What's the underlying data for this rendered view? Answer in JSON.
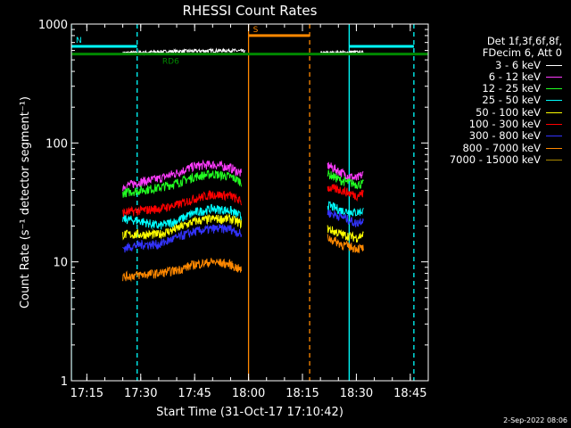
{
  "chart_data": {
    "type": "line",
    "title": "RHESSI Count Rates",
    "xlabel": "Start Time (31-Oct-17 17:10:42)",
    "ylabel": "Count Rate (s⁻¹ detector segment⁻¹)",
    "yscale": "log",
    "ylim": [
      1,
      1000
    ],
    "xlim": [
      "17:10:42",
      "18:50:00"
    ],
    "yticks": [
      {
        "value": 1,
        "label": "1"
      },
      {
        "value": 10,
        "label": "10"
      },
      {
        "value": 100,
        "label": "100"
      },
      {
        "value": 1000,
        "label": "1000"
      }
    ],
    "xticks": [
      "17:15",
      "17:30",
      "17:45",
      "18:00",
      "18:15",
      "18:30",
      "18:45"
    ],
    "legend_header": [
      "Det 1f,3f,6f,8f,",
      "FDecim 6, Att 0"
    ],
    "series": [
      {
        "name": "3 - 6 keV",
        "color": "#ffffff",
        "segments": [
          {
            "x": [
              "17:25",
              "17:40",
              "17:55",
              "17:59"
            ],
            "y": [
              570,
              590,
              600,
              590
            ]
          },
          {
            "x": [
              "18:20",
              "18:30",
              "18:32"
            ],
            "y": [
              570,
              580,
              575
            ]
          }
        ]
      },
      {
        "name": "6 - 12 keV",
        "color": "#ff3cff",
        "segments": [
          {
            "x": [
              "17:25",
              "17:30",
              "17:35",
              "17:40",
              "17:45",
              "17:50",
              "17:55",
              "17:58"
            ],
            "y": [
              43,
              47,
              50,
              56,
              64,
              66,
              62,
              55
            ]
          },
          {
            "x": [
              "18:22",
              "18:26",
              "18:30",
              "18:32"
            ],
            "y": [
              65,
              56,
              50,
              55
            ]
          }
        ]
      },
      {
        "name": "12 - 25 keV",
        "color": "#22ff22",
        "segments": [
          {
            "x": [
              "17:25",
              "17:30",
              "17:35",
              "17:40",
              "17:45",
              "17:50",
              "17:55",
              "17:58"
            ],
            "y": [
              38,
              40,
              42,
              46,
              52,
              55,
              52,
              47
            ]
          },
          {
            "x": [
              "18:22",
              "18:26",
              "18:30",
              "18:32"
            ],
            "y": [
              55,
              48,
              45,
              45
            ]
          }
        ]
      },
      {
        "name": "25 - 50 keV",
        "color": "#00ffff",
        "segments": [
          {
            "x": [
              "17:25",
              "17:30",
              "17:35",
              "17:40",
              "17:45",
              "17:50",
              "17:55",
              "17:58"
            ],
            "y": [
              23,
              22,
              20,
              22,
              26,
              28,
              27,
              24
            ]
          },
          {
            "x": [
              "18:22",
              "18:26",
              "18:30",
              "18:32"
            ],
            "y": [
              30,
              27,
              26,
              27
            ]
          }
        ]
      },
      {
        "name": "50 - 100 keV",
        "color": "#ffff00",
        "segments": [
          {
            "x": [
              "17:25",
              "17:30",
              "17:35",
              "17:40",
              "17:45",
              "17:50",
              "17:55",
              "17:58"
            ],
            "y": [
              17,
              17,
              17,
              19,
              22,
              23,
              23,
              21
            ]
          },
          {
            "x": [
              "18:22",
              "18:26",
              "18:30",
              "18:32"
            ],
            "y": [
              19,
              17,
              16,
              17
            ]
          }
        ]
      },
      {
        "name": "100 - 300 keV",
        "color": "#ff0000",
        "segments": [
          {
            "x": [
              "17:25",
              "17:30",
              "17:35",
              "17:40",
              "17:45",
              "17:50",
              "17:55",
              "17:58"
            ],
            "y": [
              26,
              27,
              28,
              30,
              34,
              37,
              36,
              32
            ]
          },
          {
            "x": [
              "18:22",
              "18:26",
              "18:30",
              "18:32"
            ],
            "y": [
              42,
              40,
              36,
              38
            ]
          }
        ]
      },
      {
        "name": "300 - 800 keV",
        "color": "#3333ff",
        "segments": [
          {
            "x": [
              "17:25",
              "17:30",
              "17:35",
              "17:40",
              "17:45",
              "17:50",
              "17:55",
              "17:58"
            ],
            "y": [
              13,
              14,
              14,
              16,
              18,
              19,
              19,
              17
            ]
          },
          {
            "x": [
              "18:22",
              "18:26",
              "18:30",
              "18:32"
            ],
            "y": [
              26,
              24,
              21,
              23
            ]
          }
        ]
      },
      {
        "name": "800 - 7000 keV",
        "color": "#ff8800",
        "segments": [
          {
            "x": [
              "17:25",
              "17:30",
              "17:35",
              "17:40",
              "17:45",
              "17:50",
              "17:55",
              "17:58"
            ],
            "y": [
              7.5,
              7.8,
              8.0,
              8.5,
              9.5,
              10,
              9.5,
              8.5
            ]
          },
          {
            "x": [
              "18:22",
              "18:26",
              "18:30",
              "18:32"
            ],
            "y": [
              16,
              14,
              13,
              13
            ]
          }
        ]
      },
      {
        "name": "7000 - 15000 keV",
        "color": "#aa8800",
        "segments": []
      }
    ],
    "reference_lines": [
      {
        "label": "RD6",
        "color": "#008800",
        "y": 560
      },
      {
        "label": "N",
        "color": "#00ffff",
        "x_start": "17:10:42",
        "x_end": "17:29",
        "y": 650
      },
      {
        "label": "",
        "color": "#00ffff",
        "x_start": "18:28",
        "x_end": "18:46",
        "y": 650
      },
      {
        "label": "S",
        "color": "#ff8800",
        "x_start": "18:00",
        "x_end": "18:17",
        "y": 800
      }
    ],
    "vertical_lines": [
      {
        "x": "17:10:42",
        "color": "#00ffff",
        "style": "solid"
      },
      {
        "x": "17:29",
        "color": "#00ffff",
        "style": "dashed"
      },
      {
        "x": "18:00",
        "color": "#ff8800",
        "style": "solid"
      },
      {
        "x": "18:17",
        "color": "#ff8800",
        "style": "dashed"
      },
      {
        "x": "18:28",
        "color": "#00ffff",
        "style": "solid"
      },
      {
        "x": "18:46",
        "color": "#00ffff",
        "style": "dashed"
      }
    ],
    "stamp": "2-Sep-2022 08:06"
  }
}
